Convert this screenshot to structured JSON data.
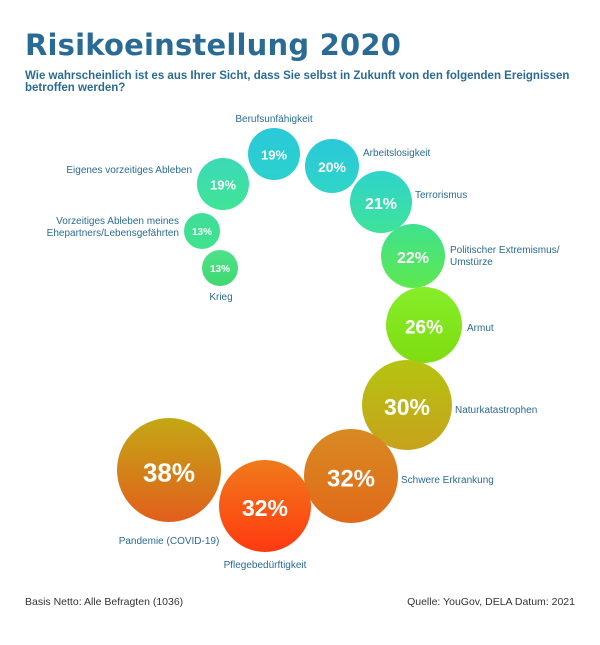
{
  "title": "Risikoeinstellung 2020",
  "subtitle": "Wie wahrscheinlich ist es aus Ihrer Sicht, dass Sie selbst in Zukunft von den folgenden Ereignissen betroffen werden?",
  "footer": {
    "left": "Basis Netto: Alle Befragten (1036)",
    "right": "Quelle: YouGov, DELA Datum: 2021"
  },
  "colors": {
    "title": "#2a6b95",
    "label": "#2a6b95",
    "low": "#2ad0d8",
    "mid": "#7be81f",
    "high": "#ff4a10"
  },
  "chart_data": {
    "type": "bubble",
    "unit": "%",
    "items": [
      {
        "label": "Berufsunfähigkeit",
        "value": 19,
        "display": "19%",
        "top": "#2ac9d9",
        "bottom": "#2bd1cd"
      },
      {
        "label": "Arbeitslosigkeit",
        "value": 20,
        "display": "20%",
        "top": "#2ac8da",
        "bottom": "#2ed5c6"
      },
      {
        "label": "Terrorismus",
        "value": 21,
        "display": "21%",
        "top": "#2fd3cc",
        "bottom": "#3ee39a"
      },
      {
        "label": "Politischer Extremismus/ Umstürze",
        "value": 22,
        "display": "22%",
        "top": "#3fe190",
        "bottom": "#5ee84e"
      },
      {
        "label": "Armut",
        "value": 26,
        "display": "26%",
        "top": "#86ee2a",
        "bottom": "#7fdc10"
      },
      {
        "label": "Naturkatastrophen",
        "value": 30,
        "display": "30%",
        "top": "#b4c410",
        "bottom": "#c8a21c"
      },
      {
        "label": "Schwere Erkrankung",
        "value": 32,
        "display": "32%",
        "top": "#d88a22",
        "bottom": "#e06a1a"
      },
      {
        "label": "Pflegebedürftigkeit",
        "value": 32,
        "display": "32%",
        "top": "#f07a1a",
        "bottom": "#ff3a10"
      },
      {
        "label": "Pandemie (COVID-19)",
        "value": 38,
        "display": "38%",
        "top": "#c3a814",
        "bottom": "#e25e1c"
      },
      {
        "label": "Krieg",
        "value": 13,
        "display": "13%",
        "top": "#4ee28a",
        "bottom": "#3fd86f"
      },
      {
        "label": "Vorzeitiges Ableben meines Ehepartners/Lebensgefährten",
        "value": 13,
        "display": "13%",
        "top": "#3fdd9a",
        "bottom": "#3ee38d"
      },
      {
        "label": "Eigenes vorzeitiges Ableben",
        "value": 19,
        "display": "19%",
        "top": "#3bd9b8",
        "bottom": "#3fe595"
      }
    ]
  }
}
